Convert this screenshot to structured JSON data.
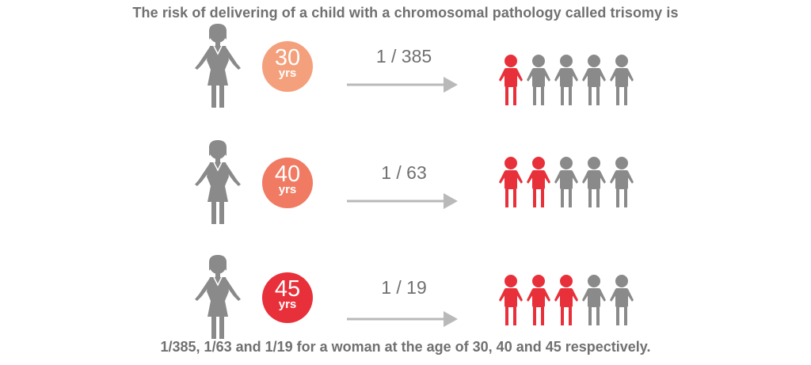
{
  "title": "The risk  of delivering of a child  with a chromosomal pathology called trisomy is",
  "footer": "1/385, 1/63 and  1/19 for a woman at the age of 30, 40 and 45 respectively.",
  "colors": {
    "gray": "#8a8a8a",
    "red": "#e8303a",
    "text": "#707070"
  },
  "rows": [
    {
      "age": "30",
      "unit": "yrs",
      "ratio": "1 / 385",
      "badge_color": "#f4a07c",
      "red_children": 1,
      "total_children": 5
    },
    {
      "age": "40",
      "unit": "yrs",
      "ratio": "1 / 63",
      "badge_color": "#f07a62",
      "red_children": 2,
      "total_children": 5
    },
    {
      "age": "45",
      "unit": "yrs",
      "ratio": "1 / 19",
      "badge_color": "#e8303a",
      "red_children": 3,
      "total_children": 5
    }
  ],
  "icons": {
    "woman": "woman-icon",
    "child": "child-icon",
    "arrow": "arrow-right-icon"
  }
}
